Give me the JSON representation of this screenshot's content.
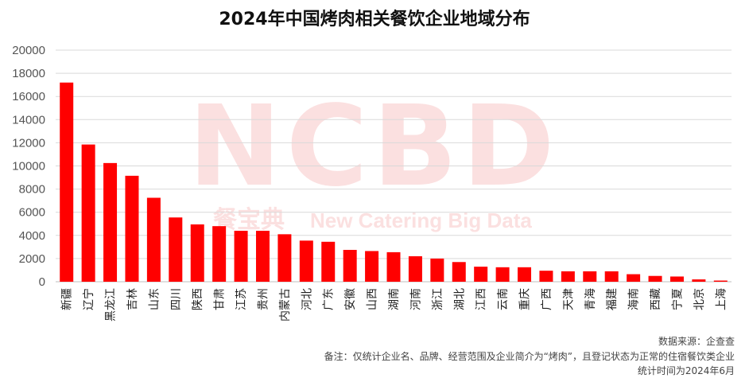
{
  "title": "2024年中国烤肉相关餐饮企业地域分布",
  "watermark": {
    "logo": "NCBD",
    "cn": "餐宝典",
    "en": "New Catering Big Data"
  },
  "footer": {
    "source": "数据来源：企查查",
    "note": "备注：仅统计企业名、品牌、经营范围及企业简介为“烤肉”，且登记状态为正常的住宿餐饮类企业",
    "time": "统计时间为2024年6月"
  },
  "colors": {
    "bar": "#ff0000",
    "grid": "#d9d9d9"
  },
  "chart_data": {
    "type": "bar",
    "categories": [
      "新疆",
      "辽宁",
      "黑龙江",
      "吉林",
      "山东",
      "四川",
      "陕西",
      "甘肃",
      "江苏",
      "贵州",
      "内蒙古",
      "河北",
      "广东",
      "安徽",
      "山西",
      "湖南",
      "河南",
      "浙江",
      "湖北",
      "江西",
      "云南",
      "重庆",
      "广西",
      "天津",
      "青海",
      "福建",
      "海南",
      "西藏",
      "宁夏",
      "北京",
      "上海"
    ],
    "values": [
      17200,
      11850,
      10250,
      9150,
      7250,
      5550,
      4950,
      4800,
      4400,
      4400,
      4100,
      3550,
      3450,
      2750,
      2650,
      2550,
      2200,
      2000,
      1700,
      1300,
      1250,
      1250,
      950,
      900,
      900,
      900,
      650,
      500,
      450,
      200,
      100
    ],
    "yticks": [
      0,
      2000,
      4000,
      6000,
      8000,
      10000,
      12000,
      14000,
      16000,
      18000,
      20000
    ],
    "ylim": [
      0,
      20000
    ],
    "grid": true
  }
}
